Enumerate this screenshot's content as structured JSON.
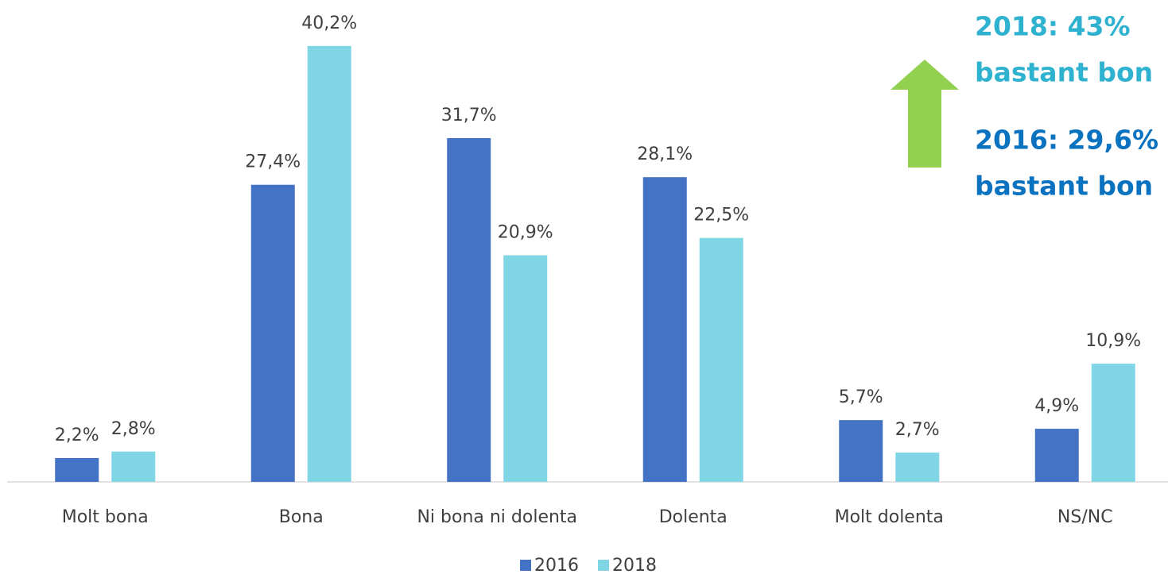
{
  "chart_data": {
    "type": "bar",
    "categories": [
      "Molt bona",
      "Bona",
      "Ni bona ni dolenta",
      "Dolenta",
      "Molt dolenta",
      "NS/NC"
    ],
    "series": [
      {
        "name": "2016",
        "color": "#4472c4",
        "values": [
          2.2,
          27.4,
          31.7,
          28.1,
          5.7,
          4.9
        ],
        "value_labels": [
          "2,2%",
          "27,4%",
          "31,7%",
          "28,1%",
          "5,7%",
          "4,9%"
        ]
      },
      {
        "name": "2018",
        "color": "#80d6e5",
        "values": [
          2.8,
          40.2,
          20.9,
          22.5,
          2.7,
          10.9
        ],
        "value_labels": [
          "2,8%",
          "40,2%",
          "20,9%",
          "22,5%",
          "2,7%",
          "10,9%"
        ]
      }
    ],
    "ylim": [
      0,
      44
    ],
    "legend": "bottom",
    "annotations": [
      {
        "text": "2018: 43%",
        "color": "#2eb2cf"
      },
      {
        "text": "bastant bon",
        "color": "#2eb2cf"
      },
      {
        "text": "2016: 29,6%",
        "color": "#0b72c0"
      },
      {
        "text": "bastant bon",
        "color": "#0b72c0"
      }
    ]
  }
}
